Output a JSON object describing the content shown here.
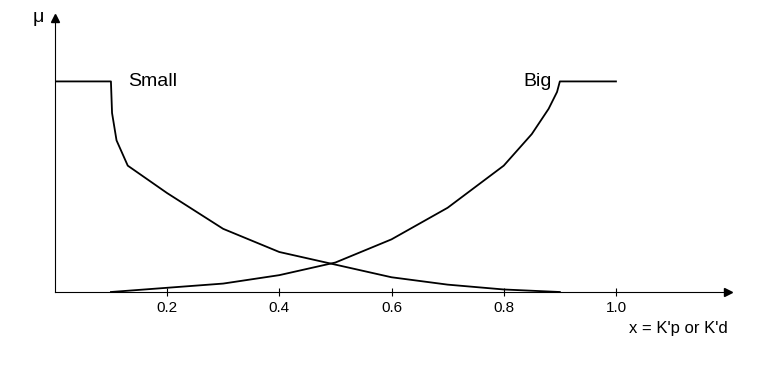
{
  "chart_data": {
    "type": "line",
    "x_label": "x = K'p or K'd",
    "y_label": "μ",
    "series": [
      {
        "name": "Small",
        "color": "#000000",
        "x": [
          0,
          0.1,
          0.102,
          0.11,
          0.13,
          0.2,
          0.3,
          0.4,
          0.5,
          0.6,
          0.7,
          0.8,
          0.9
        ],
        "values": [
          1,
          1,
          0.85,
          0.72,
          0.6,
          0.47,
          0.3,
          0.19,
          0.13,
          0.07,
          0.035,
          0.012,
          0
        ]
      },
      {
        "name": "Big",
        "color": "#000000",
        "x": [
          0.1,
          0.2,
          0.3,
          0.4,
          0.5,
          0.6,
          0.7,
          0.8,
          0.85,
          0.88,
          0.895,
          0.9,
          1.0
        ],
        "values": [
          0,
          0.02,
          0.04,
          0.08,
          0.14,
          0.25,
          0.4,
          0.6,
          0.75,
          0.87,
          0.95,
          1,
          1
        ]
      }
    ],
    "xlim": [
      0,
      1.2
    ],
    "xticks": [
      0.2,
      0.4,
      0.6,
      0.8,
      1.0
    ],
    "ylim": [
      0,
      1.3
    ],
    "yticks": [],
    "tick_labels": "x",
    "grid": false
  }
}
